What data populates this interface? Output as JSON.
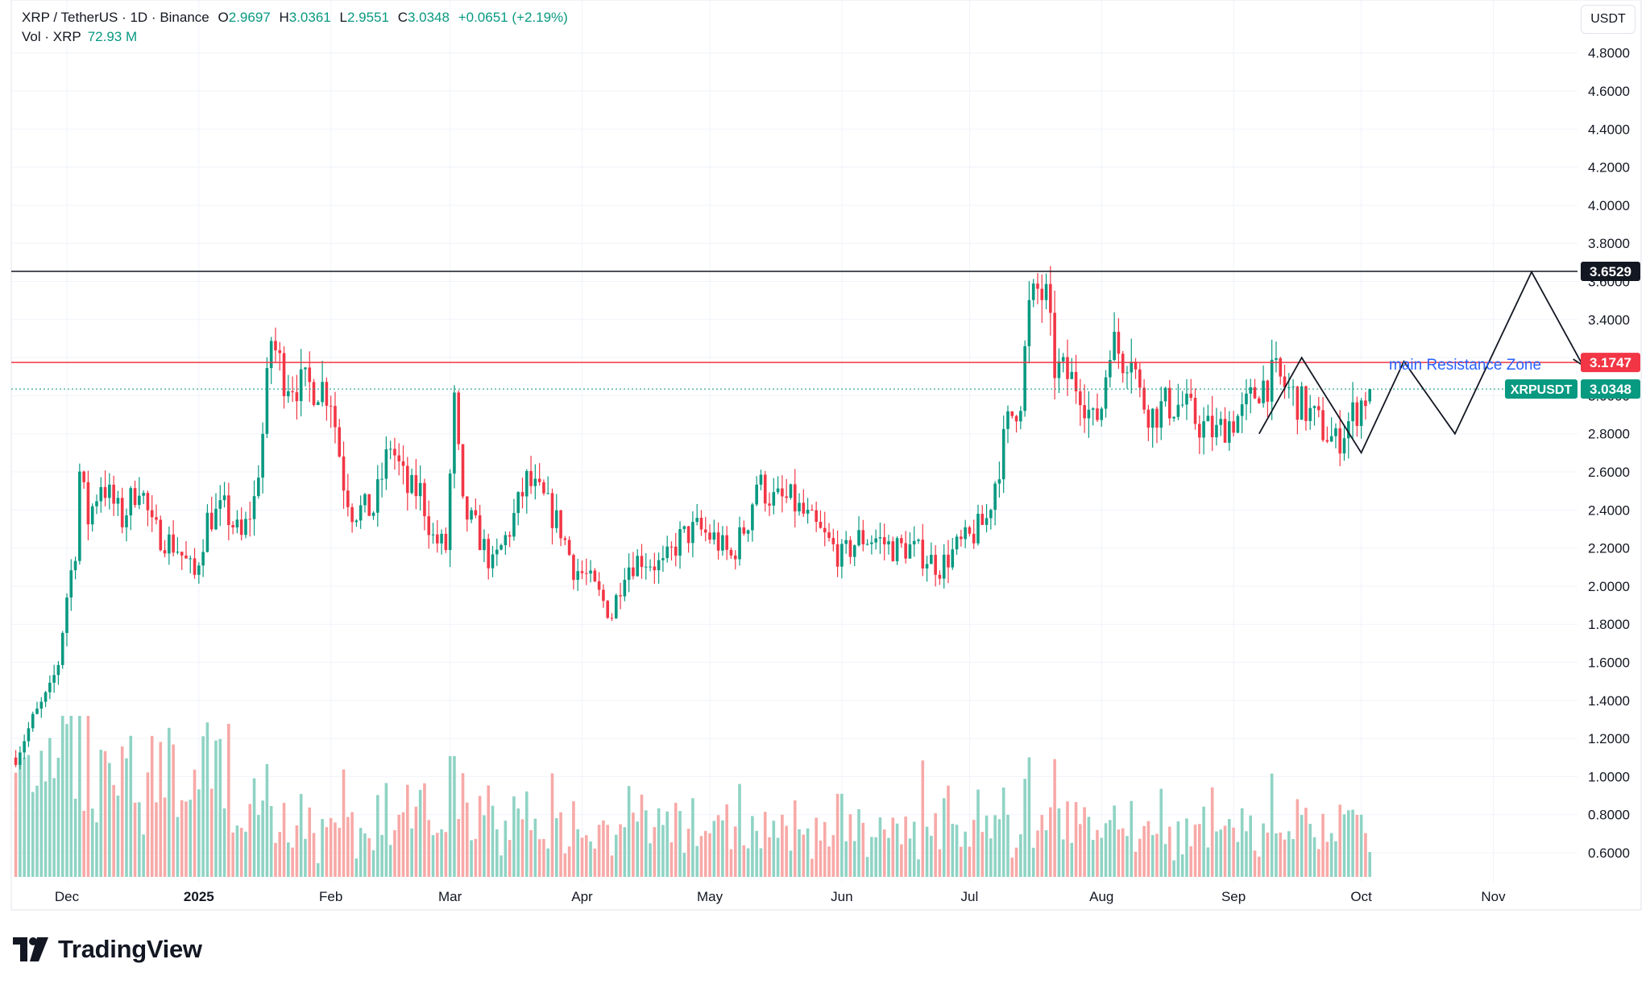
{
  "legend": {
    "symbol": "XRP / TetherUS · 1D · Binance",
    "open_label": "O",
    "open": "2.9697",
    "high_label": "H",
    "high": "3.0361",
    "low_label": "L",
    "low": "2.9551",
    "close_label": "C",
    "close": "3.0348",
    "change": "+0.0651 (+2.19%)",
    "vol_label": "Vol · XRP",
    "vol_value": "72.93 M"
  },
  "axis_unit": "USDT",
  "branding": "TradingView",
  "annotation": "main Resistance Zone",
  "colors": {
    "up": "#089981",
    "down": "#F23645",
    "vol_up": "#8FD3C4",
    "vol_down": "#F7A9A7",
    "resistance_line": "#F23645",
    "top_line": "#131722",
    "annotation_text": "#2962FF",
    "grid": "#F0F3FA"
  },
  "chart_data": {
    "type": "candlestick",
    "title": "XRP / TetherUS · 1D · Binance",
    "ylabel": "USDT",
    "ylim": [
      0.5,
      4.93
    ],
    "grid": true,
    "y_ticks": [
      "4.8000",
      "4.6000",
      "4.4000",
      "4.2000",
      "4.0000",
      "3.8000",
      "3.6000",
      "3.4000",
      "3.2000",
      "3.0000",
      "2.8000",
      "2.6000",
      "2.4000",
      "2.2000",
      "2.0000",
      "1.8000",
      "1.6000",
      "1.4000",
      "1.2000",
      "1.0000",
      "0.8000",
      "0.6000"
    ],
    "x_ticks": [
      "Dec",
      "2025",
      "Feb",
      "Mar",
      "Apr",
      "May",
      "Jun",
      "Jul",
      "Aug",
      "Sep",
      "Oct",
      "Nov"
    ],
    "x_tick_days": [
      0,
      31,
      62,
      90,
      121,
      151,
      182,
      212,
      243,
      274,
      304,
      335
    ],
    "horizontal_lines": [
      {
        "name": "top_level",
        "value": 3.6529,
        "label": "3.6529",
        "color": "#131722"
      },
      {
        "name": "main_resistance",
        "value": 3.1747,
        "label": "3.1747",
        "color": "#F23645"
      },
      {
        "name": "XRPUSDT",
        "value": 3.0348,
        "label": "3.0348",
        "tag": "XRPUSDT",
        "color": "#089981"
      }
    ],
    "projection_path": [
      [
        280,
        2.8
      ],
      [
        290,
        3.2
      ],
      [
        304,
        2.7
      ],
      [
        314,
        3.18
      ],
      [
        326,
        2.8
      ],
      [
        344,
        3.65
      ],
      [
        356,
        3.16
      ]
    ],
    "price_anchors": [
      [
        -12,
        1.1
      ],
      [
        -8,
        1.3
      ],
      [
        -4,
        1.45
      ],
      [
        -2,
        1.6
      ],
      [
        0,
        1.95
      ],
      [
        2,
        2.2
      ],
      [
        3,
        2.6
      ],
      [
        5,
        2.35
      ],
      [
        8,
        2.55
      ],
      [
        13,
        2.35
      ],
      [
        17,
        2.55
      ],
      [
        20,
        2.3
      ],
      [
        26,
        2.2
      ],
      [
        30,
        2.05
      ],
      [
        33,
        2.35
      ],
      [
        37,
        2.4
      ],
      [
        41,
        2.25
      ],
      [
        44,
        2.45
      ],
      [
        46,
        2.8
      ],
      [
        48,
        3.3
      ],
      [
        51,
        3.1
      ],
      [
        55,
        3.05
      ],
      [
        60,
        3.05
      ],
      [
        62,
        3.0
      ],
      [
        65,
        2.55
      ],
      [
        67,
        2.4
      ],
      [
        72,
        2.4
      ],
      [
        76,
        2.75
      ],
      [
        80,
        2.5
      ],
      [
        83,
        2.5
      ],
      [
        86,
        2.25
      ],
      [
        89,
        2.2
      ],
      [
        91,
        2.95
      ],
      [
        93,
        2.4
      ],
      [
        96,
        2.3
      ],
      [
        100,
        2.1
      ],
      [
        104,
        2.3
      ],
      [
        108,
        2.55
      ],
      [
        112,
        2.45
      ],
      [
        116,
        2.3
      ],
      [
        119,
        2.1
      ],
      [
        122,
        2.05
      ],
      [
        125,
        1.95
      ],
      [
        128,
        1.85
      ],
      [
        131,
        2.1
      ],
      [
        135,
        2.15
      ],
      [
        140,
        2.1
      ],
      [
        144,
        2.25
      ],
      [
        148,
        2.3
      ],
      [
        152,
        2.25
      ],
      [
        156,
        2.15
      ],
      [
        160,
        2.35
      ],
      [
        162,
        2.55
      ],
      [
        166,
        2.45
      ],
      [
        170,
        2.45
      ],
      [
        174,
        2.35
      ],
      [
        178,
        2.25
      ],
      [
        182,
        2.15
      ],
      [
        186,
        2.25
      ],
      [
        190,
        2.25
      ],
      [
        194,
        2.2
      ],
      [
        198,
        2.2
      ],
      [
        202,
        2.15
      ],
      [
        205,
        2.1
      ],
      [
        209,
        2.2
      ],
      [
        212,
        2.25
      ],
      [
        216,
        2.35
      ],
      [
        218,
        2.55
      ],
      [
        221,
        2.85
      ],
      [
        224,
        3.0
      ],
      [
        226,
        3.45
      ],
      [
        228,
        3.55
      ],
      [
        230,
        3.5
      ],
      [
        232,
        3.15
      ],
      [
        235,
        3.1
      ],
      [
        238,
        3.05
      ],
      [
        241,
        2.85
      ],
      [
        243,
        2.95
      ],
      [
        245,
        3.3
      ],
      [
        248,
        3.2
      ],
      [
        250,
        3.25
      ],
      [
        252,
        3.0
      ],
      [
        255,
        2.9
      ],
      [
        258,
        2.95
      ],
      [
        262,
        2.95
      ],
      [
        266,
        2.85
      ],
      [
        270,
        2.8
      ],
      [
        272,
        2.85
      ],
      [
        276,
        2.9
      ],
      [
        280,
        3.05
      ],
      [
        284,
        3.1
      ],
      [
        288,
        3.0
      ],
      [
        292,
        2.9
      ],
      [
        296,
        2.8
      ],
      [
        298,
        2.75
      ],
      [
        302,
        2.9
      ],
      [
        305,
        3.0
      ],
      [
        306,
        3.0348
      ]
    ],
    "last_candle": {
      "open": 2.9697,
      "high": 3.0361,
      "low": 2.9551,
      "close": 3.0348
    },
    "volume_series": {
      "name": "Vol · XRP",
      "last_value": "72.93 M"
    }
  }
}
